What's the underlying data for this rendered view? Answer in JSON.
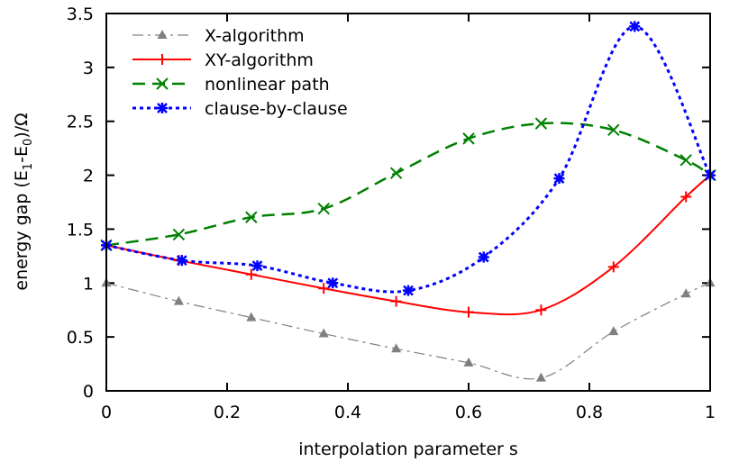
{
  "chart_data": {
    "type": "line",
    "title": "",
    "xlabel": "interpolation parameter s",
    "ylabel": "energy gap (E1-E0)/Ω",
    "xlim": [
      0,
      1
    ],
    "ylim": [
      0,
      3.5
    ],
    "xticks": [
      "0",
      "0.2",
      "0.4",
      "0.6",
      "0.8",
      "1"
    ],
    "yticks": [
      "0",
      "0.5",
      "1",
      "1.5",
      "2",
      "2.5",
      "3",
      "3.5"
    ],
    "grid": false,
    "legend_position": "top-left",
    "series": [
      {
        "name": "X-algorithm",
        "color": "#808080",
        "marker": "triangle",
        "dash": "dash-dot",
        "x": [
          0,
          0.12,
          0.24,
          0.36,
          0.48,
          0.6,
          0.72,
          0.84,
          0.96,
          1
        ],
        "y": [
          1.0,
          0.83,
          0.68,
          0.53,
          0.39,
          0.26,
          0.12,
          0.55,
          0.9,
          1.0
        ]
      },
      {
        "name": "XY-algorithm",
        "color": "#ff0000",
        "marker": "plus",
        "dash": "solid",
        "x": [
          0,
          0.12,
          0.24,
          0.36,
          0.48,
          0.6,
          0.72,
          0.84,
          0.96,
          1
        ],
        "y": [
          1.35,
          1.21,
          1.08,
          0.95,
          0.83,
          0.73,
          0.75,
          1.15,
          1.8,
          2.0
        ]
      },
      {
        "name": "nonlinear path",
        "color": "#008000",
        "marker": "cross",
        "dash": "dashed",
        "x": [
          0,
          0.12,
          0.24,
          0.36,
          0.48,
          0.6,
          0.72,
          0.84,
          0.96,
          1
        ],
        "y": [
          1.35,
          1.45,
          1.61,
          1.69,
          2.02,
          2.34,
          2.48,
          2.42,
          2.14,
          2.0
        ]
      },
      {
        "name": "clause-by-clause",
        "color": "#0000ff",
        "marker": "star",
        "dash": "dotted",
        "x": [
          0,
          0.125,
          0.25,
          0.375,
          0.5,
          0.625,
          0.75,
          0.875,
          1
        ],
        "y": [
          1.35,
          1.21,
          1.16,
          1.0,
          0.93,
          1.24,
          1.97,
          3.38,
          2.0
        ]
      }
    ]
  }
}
